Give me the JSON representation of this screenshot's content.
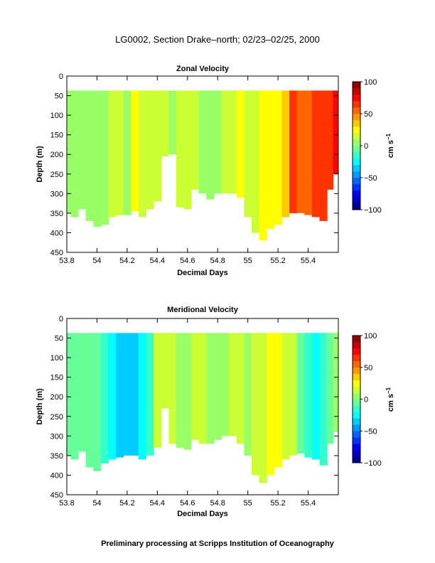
{
  "page": {
    "title": "LG0002, Section Drake–north; 02/23–02/25, 2000",
    "footer": "Preliminary processing at Scripps Institution of Oceanography"
  },
  "chart_data": [
    {
      "type": "heatmap",
      "title": "Zonal Velocity",
      "xlabel": "Decimal Days",
      "ylabel": "Depth (m)",
      "xlim": [
        53.8,
        55.6
      ],
      "ylim": [
        450,
        0
      ],
      "y_inverted": true,
      "xticks": [
        "53.8",
        "54",
        "54.2",
        "54.4",
        "54.6",
        "54.8",
        "55",
        "55.2",
        "55.4"
      ],
      "yticks": [
        "0",
        "50",
        "100",
        "150",
        "200",
        "250",
        "300",
        "350",
        "400",
        "450"
      ],
      "colorbar": {
        "label": "cm s",
        "label_exponent": "−1",
        "range": [
          -100,
          100
        ],
        "ticks": [
          "100",
          "50",
          "0",
          "−50",
          "−100"
        ]
      },
      "data_top_depth": 37,
      "bottom_depth_profile": {
        "x": [
          53.8,
          53.85,
          53.9,
          53.95,
          54.0,
          54.05,
          54.1,
          54.15,
          54.2,
          54.25,
          54.3,
          54.35,
          54.4,
          54.45,
          54.5,
          54.55,
          54.6,
          54.65,
          54.7,
          54.75,
          54.8,
          54.85,
          54.9,
          54.95,
          55.0,
          55.05,
          55.1,
          55.15,
          55.2,
          55.25,
          55.3,
          55.35,
          55.4,
          55.45,
          55.5,
          55.55,
          55.58
        ],
        "depth": [
          350,
          360,
          340,
          370,
          385,
          380,
          360,
          355,
          355,
          345,
          360,
          340,
          320,
          205,
          200,
          335,
          340,
          290,
          300,
          315,
          300,
          300,
          300,
          310,
          360,
          400,
          420,
          390,
          380,
          360,
          350,
          350,
          355,
          360,
          370,
          290,
          250
        ]
      },
      "columns": {
        "x": [
          53.8,
          53.85,
          53.9,
          53.95,
          54.0,
          54.05,
          54.1,
          54.15,
          54.2,
          54.25,
          54.3,
          54.35,
          54.4,
          54.45,
          54.5,
          54.55,
          54.6,
          54.65,
          54.7,
          54.75,
          54.8,
          54.85,
          54.9,
          54.95,
          55.0,
          55.05,
          55.1,
          55.15,
          55.2,
          55.25,
          55.3,
          55.35,
          55.4,
          55.45,
          55.5,
          55.55,
          55.58
        ],
        "velocity_cm_s": [
          5,
          3,
          8,
          6,
          1,
          4,
          10,
          14,
          8,
          20,
          10,
          15,
          18,
          14,
          8,
          10,
          15,
          12,
          9,
          5,
          6,
          12,
          18,
          22,
          14,
          18,
          25,
          28,
          22,
          30,
          62,
          58,
          55,
          60,
          65,
          68,
          72
        ]
      }
    },
    {
      "type": "heatmap",
      "title": "Meridional Velocity",
      "xlabel": "Decimal Days",
      "ylabel": "Depth (m)",
      "xlim": [
        53.8,
        55.6
      ],
      "ylim": [
        450,
        0
      ],
      "y_inverted": true,
      "xticks": [
        "53.8",
        "54",
        "54.2",
        "54.4",
        "54.6",
        "54.8",
        "55",
        "55.2",
        "55.4"
      ],
      "yticks": [
        "0",
        "50",
        "100",
        "150",
        "200",
        "250",
        "300",
        "350",
        "400",
        "450"
      ],
      "colorbar": {
        "label": "cm s",
        "label_exponent": "−1",
        "range": [
          -100,
          100
        ],
        "ticks": [
          "100",
          "50",
          "0",
          "−50",
          "−100"
        ]
      },
      "data_top_depth": 37,
      "bottom_depth_profile": {
        "x": [
          53.8,
          53.85,
          53.9,
          53.95,
          54.0,
          54.05,
          54.1,
          54.15,
          54.2,
          54.25,
          54.3,
          54.35,
          54.4,
          54.45,
          54.5,
          54.55,
          54.6,
          54.65,
          54.7,
          54.75,
          54.8,
          54.85,
          54.9,
          54.95,
          55.0,
          55.05,
          55.1,
          55.15,
          55.2,
          55.25,
          55.3,
          55.35,
          55.4,
          55.45,
          55.5,
          55.55,
          55.58
        ],
        "depth": [
          350,
          360,
          340,
          380,
          390,
          370,
          360,
          355,
          350,
          350,
          360,
          350,
          330,
          230,
          320,
          330,
          335,
          310,
          320,
          320,
          310,
          300,
          300,
          320,
          350,
          400,
          420,
          400,
          380,
          360,
          350,
          345,
          355,
          360,
          375,
          320,
          290
        ]
      },
      "columns": {
        "x": [
          53.8,
          53.85,
          53.9,
          53.95,
          54.0,
          54.05,
          54.1,
          54.15,
          54.2,
          54.25,
          54.3,
          54.35,
          54.4,
          54.45,
          54.5,
          54.55,
          54.6,
          54.65,
          54.7,
          54.75,
          54.8,
          54.85,
          54.9,
          54.95,
          55.0,
          55.05,
          55.1,
          55.15,
          55.2,
          55.25,
          55.3,
          55.35,
          55.4,
          55.45,
          55.5,
          55.55,
          55.58
        ],
        "velocity_cm_s": [
          -5,
          -10,
          -8,
          -6,
          -2,
          -18,
          -25,
          -35,
          -40,
          -38,
          -30,
          -15,
          10,
          18,
          14,
          8,
          5,
          10,
          12,
          6,
          2,
          8,
          14,
          10,
          6,
          12,
          16,
          20,
          22,
          18,
          10,
          -4,
          -12,
          -22,
          -18,
          -6,
          4
        ]
      }
    }
  ]
}
